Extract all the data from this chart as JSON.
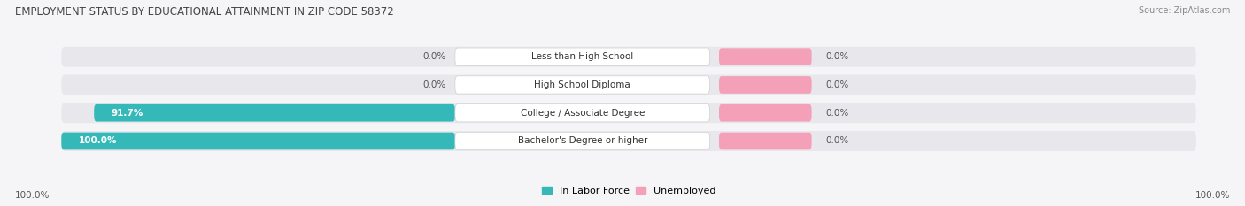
{
  "title": "EMPLOYMENT STATUS BY EDUCATIONAL ATTAINMENT IN ZIP CODE 58372",
  "source": "Source: ZipAtlas.com",
  "categories": [
    "Less than High School",
    "High School Diploma",
    "College / Associate Degree",
    "Bachelor's Degree or higher"
  ],
  "labor_force": [
    0.0,
    0.0,
    91.7,
    100.0
  ],
  "unemployed": [
    0.0,
    0.0,
    0.0,
    0.0
  ],
  "left_label_labor": [
    "0.0%",
    "0.0%",
    "91.7%",
    "100.0%"
  ],
  "right_label_unemployed": [
    "0.0%",
    "0.0%",
    "0.0%",
    "0.0%"
  ],
  "bottom_left_label": "100.0%",
  "bottom_right_label": "100.0%",
  "color_labor": "#35b8b8",
  "color_unemployed": "#f4a0b8",
  "color_bar_bg": "#e8e8ec",
  "bar_height": 0.62,
  "title_fontsize": 8.5,
  "source_fontsize": 7,
  "label_fontsize": 7.5,
  "category_fontsize": 7.5,
  "legend_fontsize": 8,
  "axis_label_fontsize": 7.5,
  "background_color": "#f5f5f7"
}
